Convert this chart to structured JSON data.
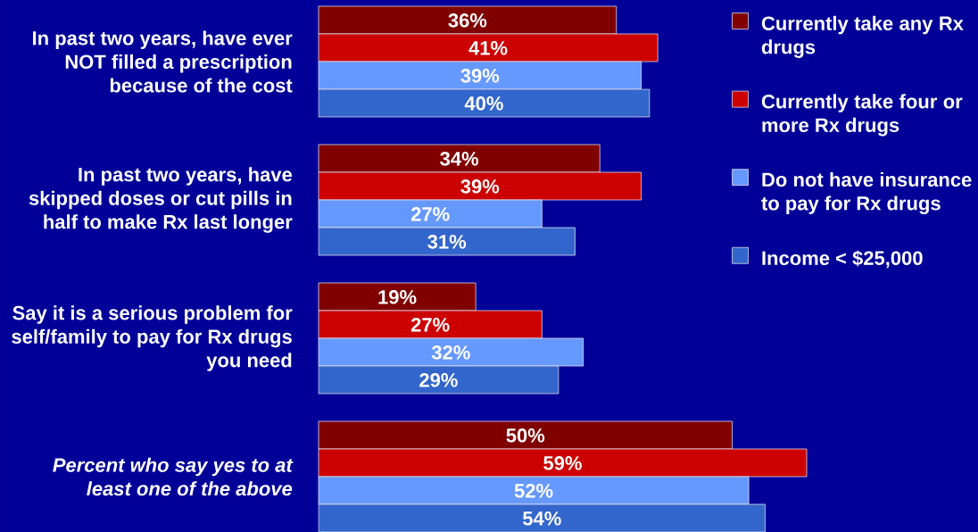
{
  "chart_data": {
    "type": "bar",
    "orientation": "horizontal",
    "categories": [
      "In past two years, have ever NOT filled a prescription because of the cost",
      "In past two years, have skipped doses or cut pills in half to make Rx last longer",
      "Say it is a serious problem for self/family to pay for Rx drugs you need",
      "*Percent who say yes to at least one of the above*"
    ],
    "series": [
      {
        "name": "Currently take any Rx drugs",
        "color": "#800000",
        "values": [
          36,
          34,
          19,
          50
        ],
        "value_labels": [
          "36%",
          "34%",
          "19%",
          "50%"
        ]
      },
      {
        "name": "Currently take four or more Rx drugs",
        "color": "#cc0000",
        "values": [
          41,
          39,
          27,
          59
        ],
        "value_labels": [
          "41%",
          "39%",
          "27%",
          "59%"
        ]
      },
      {
        "name": "Do not have insurance to pay for Rx drugs",
        "color": "#6699ff",
        "values": [
          39,
          27,
          32,
          52
        ],
        "value_labels": [
          "39%",
          "27%",
          "32%",
          "52%"
        ]
      },
      {
        "name": "Income < $25,000",
        "color": "#3366cc",
        "values": [
          40,
          31,
          29,
          54
        ],
        "value_labels": [
          "40%",
          "31%",
          "29%",
          "54%"
        ]
      }
    ],
    "legend": "top right"
  }
}
